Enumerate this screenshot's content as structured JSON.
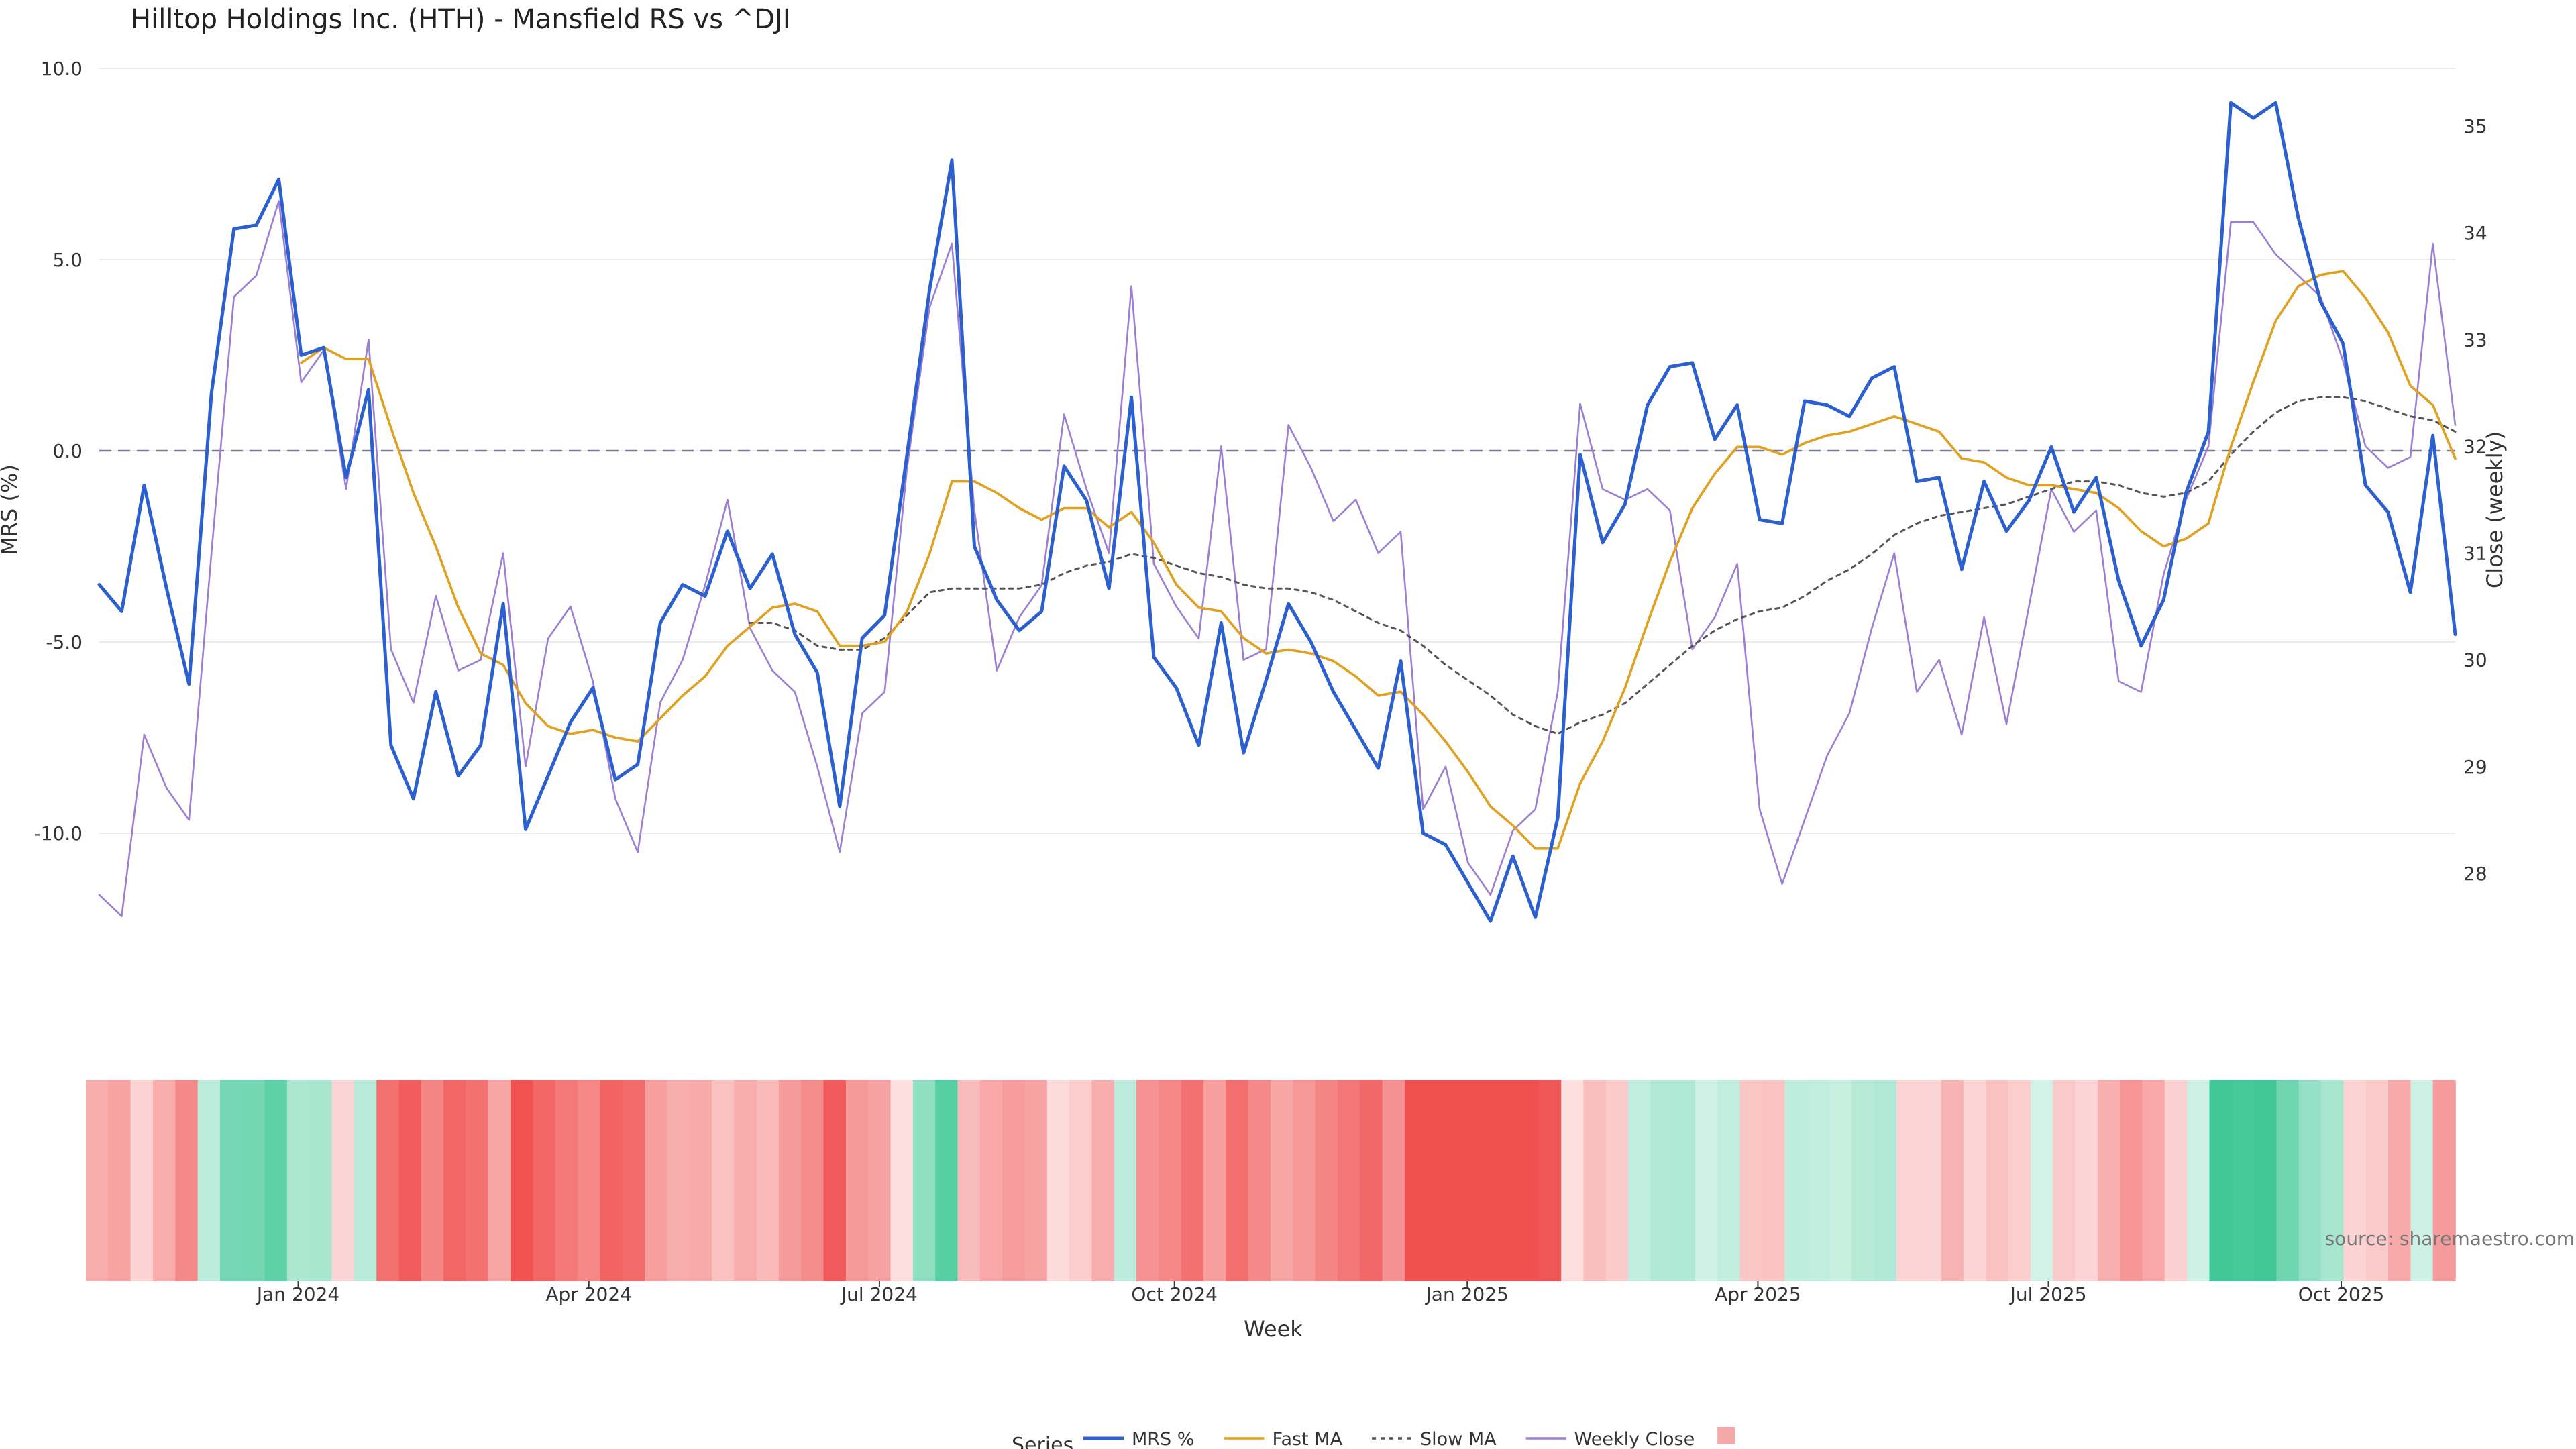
{
  "chart_data": {
    "type": "line",
    "title": "Hilltop Holdings Inc. (HTH) - Mansfield RS vs ^DJI",
    "xlabel": "Week",
    "ylabel_left": "MRS (%)",
    "ylabel_right": "Close (weekly)",
    "ylim_left": [
      -14.0,
      11.0
    ],
    "ylim_right": [
      27.0,
      35.8
    ],
    "y_ticks_left": [
      "10.0",
      "5.0",
      "0.0",
      "-5.0",
      "-10.0"
    ],
    "y_ticks_right": [
      "35",
      "34",
      "33",
      "32",
      "31",
      "30",
      "29",
      "28"
    ],
    "x_ticks": [
      "Jan 2024",
      "Apr 2024",
      "Jul 2024",
      "Oct 2024",
      "Jan 2025",
      "Apr 2025",
      "Jul 2025",
      "Oct 2025"
    ],
    "x_tick_week_index": [
      9.5,
      22.5,
      35.5,
      48.7,
      61.8,
      74.8,
      87.8,
      100.9
    ],
    "zero_line": 0,
    "series": [
      {
        "name": "MRS %",
        "axis": "left",
        "color": "#2c5fcf",
        "style": "solid",
        "values": [
          -3.5,
          -4.2,
          -0.9,
          -3.6,
          -6.1,
          1.5,
          5.8,
          5.9,
          7.1,
          2.5,
          2.7,
          -0.7,
          1.6,
          -7.7,
          -9.1,
          -6.3,
          -8.5,
          -7.7,
          -4.0,
          -9.9,
          -8.5,
          -7.1,
          -6.2,
          -8.6,
          -8.2,
          -4.5,
          -3.5,
          -3.8,
          -2.1,
          -3.6,
          -2.7,
          -4.8,
          -5.8,
          -9.3,
          -4.9,
          -4.3,
          -0.1,
          4.2,
          7.6,
          -2.5,
          -3.9,
          -4.7,
          -4.2,
          -0.4,
          -1.3,
          -3.6,
          1.4,
          -5.4,
          -6.2,
          -7.7,
          -4.5,
          -7.9,
          -6.0,
          -4.0,
          -5.0,
          -6.3,
          -7.3,
          -8.3,
          -5.5,
          -10.0,
          -10.3,
          -11.3,
          -12.3,
          -10.6,
          -12.2,
          -9.6,
          -0.1,
          -2.4,
          -1.4,
          1.2,
          2.2,
          2.3,
          0.3,
          1.2,
          -1.8,
          -1.9,
          1.3,
          1.2,
          0.9,
          1.9,
          2.2,
          -0.8,
          -0.7,
          -3.1,
          -0.8,
          -2.1,
          -1.3,
          0.1,
          -1.6,
          -0.7,
          -3.4,
          -5.1,
          -3.9,
          -1.1,
          0.5,
          9.1,
          8.7,
          9.1,
          6.1,
          3.9,
          2.8,
          -0.9,
          -1.6,
          -3.7,
          0.4,
          -4.8
        ]
      },
      {
        "name": "Fast MA",
        "axis": "left",
        "color": "#e0a020",
        "style": "solid",
        "values": [
          null,
          null,
          null,
          null,
          null,
          null,
          null,
          null,
          null,
          2.3,
          2.7,
          2.4,
          2.4,
          0.6,
          -1.1,
          -2.5,
          -4.1,
          -5.3,
          -5.6,
          -6.6,
          -7.2,
          -7.4,
          -7.3,
          -7.5,
          -7.6,
          -7.0,
          -6.4,
          -5.9,
          -5.1,
          -4.6,
          -4.1,
          -4.0,
          -4.2,
          -5.1,
          -5.1,
          -5.0,
          -4.2,
          -2.7,
          -0.8,
          -0.8,
          -1.1,
          -1.5,
          -1.8,
          -1.5,
          -1.5,
          -2.0,
          -1.6,
          -2.4,
          -3.5,
          -4.1,
          -4.2,
          -4.9,
          -5.3,
          -5.2,
          -5.3,
          -5.5,
          -5.9,
          -6.4,
          -6.3,
          -6.9,
          -7.6,
          -8.4,
          -9.3,
          -9.8,
          -10.4,
          -10.4,
          -8.7,
          -7.6,
          -6.2,
          -4.5,
          -2.9,
          -1.5,
          -0.6,
          0.1,
          0.1,
          -0.1,
          0.2,
          0.4,
          0.5,
          0.7,
          0.9,
          0.7,
          0.5,
          -0.2,
          -0.3,
          -0.7,
          -0.9,
          -0.9,
          -1.0,
          -1.1,
          -1.5,
          -2.1,
          -2.5,
          -2.3,
          -1.9,
          0.1,
          1.8,
          3.4,
          4.3,
          4.6,
          4.7,
          4.0,
          3.1,
          1.7,
          1.2,
          -0.2
        ]
      },
      {
        "name": "Slow MA",
        "axis": "left",
        "color": "#555555",
        "style": "dotted",
        "values": [
          null,
          null,
          null,
          null,
          null,
          null,
          null,
          null,
          null,
          null,
          null,
          null,
          null,
          null,
          null,
          null,
          null,
          null,
          null,
          null,
          null,
          null,
          null,
          null,
          null,
          null,
          null,
          null,
          null,
          -4.5,
          -4.5,
          -4.7,
          -5.1,
          -5.2,
          -5.2,
          -4.9,
          -4.3,
          -3.7,
          -3.6,
          -3.6,
          -3.6,
          -3.6,
          -3.5,
          -3.2,
          -3.0,
          -2.9,
          -2.7,
          -2.8,
          -3.0,
          -3.2,
          -3.3,
          -3.5,
          -3.6,
          -3.6,
          -3.7,
          -3.9,
          -4.2,
          -4.5,
          -4.7,
          -5.1,
          -5.6,
          -6.0,
          -6.4,
          -6.9,
          -7.2,
          -7.4,
          -7.1,
          -6.9,
          -6.6,
          -6.1,
          -5.6,
          -5.1,
          -4.7,
          -4.4,
          -4.2,
          -4.1,
          -3.8,
          -3.4,
          -3.1,
          -2.7,
          -2.2,
          -1.9,
          -1.7,
          -1.6,
          -1.5,
          -1.4,
          -1.2,
          -1.0,
          -0.8,
          -0.8,
          -0.9,
          -1.1,
          -1.2,
          -1.1,
          -0.8,
          -0.1,
          0.5,
          1.0,
          1.3,
          1.4,
          1.4,
          1.3,
          1.1,
          0.9,
          0.8,
          0.5
        ]
      },
      {
        "name": "Weekly Close",
        "axis": "right",
        "color": "#9b7fd4",
        "style": "solid",
        "values": [
          27.8,
          27.6,
          29.3,
          28.8,
          28.5,
          31.0,
          33.4,
          33.6,
          34.3,
          32.6,
          32.9,
          31.6,
          33.0,
          30.1,
          29.6,
          30.6,
          29.9,
          30.0,
          31.0,
          29.0,
          30.2,
          30.5,
          29.8,
          28.7,
          28.2,
          29.6,
          30.0,
          30.7,
          31.5,
          30.3,
          29.9,
          29.7,
          29.0,
          28.2,
          29.5,
          29.7,
          31.8,
          33.3,
          33.9,
          31.4,
          29.9,
          30.4,
          30.7,
          32.3,
          31.6,
          31.0,
          33.5,
          30.9,
          30.5,
          30.2,
          32.0,
          30.0,
          30.1,
          32.2,
          31.8,
          31.3,
          31.5,
          31.0,
          31.2,
          28.6,
          29.0,
          28.1,
          27.8,
          28.4,
          28.6,
          29.7,
          32.4,
          31.6,
          31.5,
          31.6,
          31.4,
          30.1,
          30.4,
          30.9,
          28.6,
          27.9,
          28.5,
          29.1,
          29.5,
          30.3,
          31.0,
          29.7,
          30.0,
          29.3,
          30.4,
          29.4,
          30.5,
          31.6,
          31.2,
          31.4,
          29.8,
          29.7,
          30.8,
          31.5,
          32.0,
          34.1,
          34.1,
          33.8,
          33.6,
          33.4,
          32.8,
          32.0,
          31.8,
          31.9,
          33.9,
          32.2
        ]
      }
    ],
    "heat_strip": {
      "description": "weekly MRS shaded from red (negative) to green (positive)",
      "colors": {
        "negative": "#f05050",
        "positive": "#40c898",
        "neutral": "#ffffff"
      }
    },
    "legend_title": "Series",
    "legend_position": "bottom-center",
    "source_text": "source: sharemaestro.com"
  }
}
